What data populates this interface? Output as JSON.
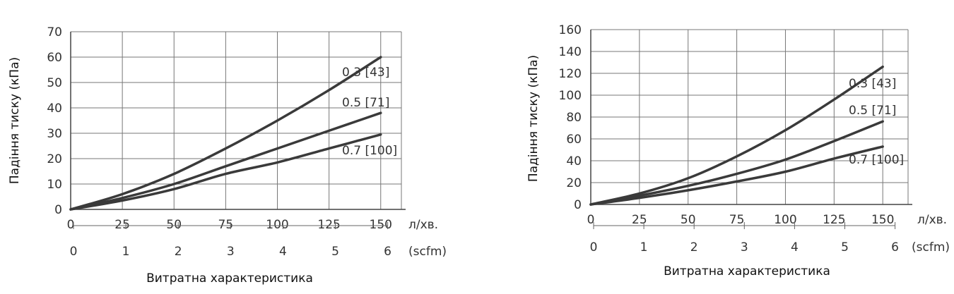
{
  "chart_data": [
    {
      "type": "line",
      "ylabel": "Падіння тиску (кПа)",
      "xlabel": "Витратна характеристика",
      "x_unit": "л/хв.",
      "x2_unit": "(scfm)",
      "xlim": [
        0,
        160
      ],
      "ylim": [
        0,
        70
      ],
      "x_ticks": [
        0,
        25,
        50,
        75,
        100,
        125,
        150
      ],
      "y_ticks": [
        0,
        10,
        20,
        30,
        40,
        50,
        60,
        70
      ],
      "x2_ticks": [
        0,
        1,
        2,
        3,
        4,
        5,
        6
      ],
      "grid": true,
      "series": [
        {
          "name": "0.3 [43]",
          "x": [
            0,
            25,
            50,
            75,
            100,
            125,
            150
          ],
          "y": [
            0,
            6,
            14,
            24,
            35,
            47,
            60
          ]
        },
        {
          "name": "0.5 [71]",
          "x": [
            0,
            25,
            50,
            75,
            100,
            125,
            150
          ],
          "y": [
            0,
            4.5,
            10,
            17,
            24,
            31,
            38
          ]
        },
        {
          "name": "0.7 [100]",
          "x": [
            0,
            25,
            50,
            75,
            100,
            125,
            150
          ],
          "y": [
            0,
            3.5,
            8,
            14,
            18.5,
            24,
            29.5
          ]
        }
      ]
    },
    {
      "type": "line",
      "ylabel": "Падіння тиску (кПа)",
      "xlabel": "Витратна характеристика",
      "x_unit": "л/хв.",
      "x2_unit": "(scfm)",
      "xlim": [
        0,
        163
      ],
      "ylim": [
        0,
        160
      ],
      "x_ticks": [
        0,
        25,
        50,
        75,
        100,
        125,
        150
      ],
      "y_ticks": [
        0,
        20,
        40,
        60,
        80,
        100,
        120,
        140,
        160
      ],
      "x2_ticks": [
        0,
        1,
        2,
        3,
        4,
        5,
        6
      ],
      "grid": true,
      "series": [
        {
          "name": "0.3 [43]",
          "x": [
            0,
            25,
            50,
            75,
            100,
            125,
            150
          ],
          "y": [
            0,
            10,
            24,
            44,
            68,
            96,
            126
          ]
        },
        {
          "name": "0.5 [71]",
          "x": [
            0,
            25,
            50,
            75,
            100,
            125,
            150
          ],
          "y": [
            0,
            8,
            17,
            28,
            41,
            58,
            76
          ]
        },
        {
          "name": "0.7 [100]",
          "x": [
            0,
            25,
            50,
            75,
            100,
            125,
            150
          ],
          "y": [
            0,
            6,
            13,
            21,
            30,
            42,
            53
          ]
        }
      ]
    }
  ]
}
